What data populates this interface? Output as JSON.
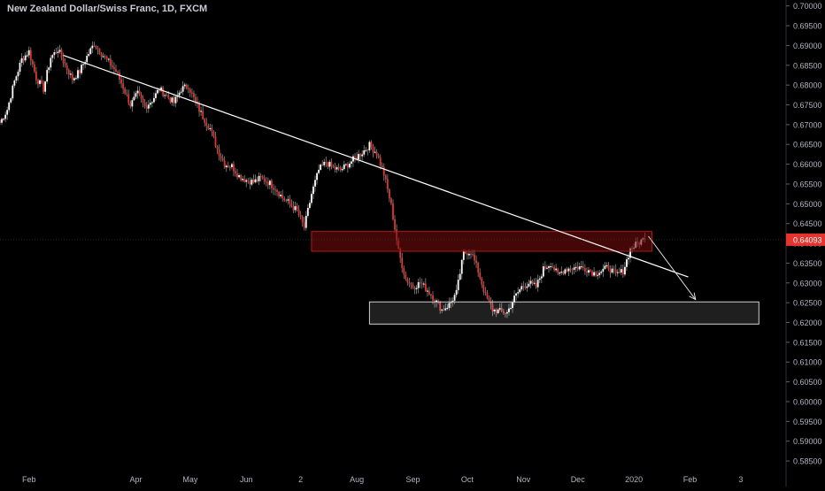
{
  "header": {
    "title": "New Zealand Dollar/Swiss Franc, 1D, FXCM"
  },
  "chart_data": {
    "type": "candlestick",
    "title": "New Zealand Dollar/Swiss Franc, 1D, FXCM",
    "ylim": [
      0.583,
      0.7015
    ],
    "y_ticks": [
      "0.70000",
      "0.69500",
      "0.69000",
      "0.68500",
      "0.68000",
      "0.67500",
      "0.67000",
      "0.66500",
      "0.66000",
      "0.65500",
      "0.65000",
      "0.64500",
      "0.64000",
      "0.63500",
      "0.63000",
      "0.62500",
      "0.62000",
      "0.61500",
      "0.61000",
      "0.60500",
      "0.60000",
      "0.59500",
      "0.59000",
      "0.58500"
    ],
    "x_ticks": [
      {
        "label": "Feb",
        "day": 0
      },
      {
        "label": "Apr",
        "day": 59
      },
      {
        "label": "May",
        "day": 89
      },
      {
        "label": "Jun",
        "day": 120
      },
      {
        "label": "2",
        "day": 150
      },
      {
        "label": "Aug",
        "day": 181
      },
      {
        "label": "Sep",
        "day": 212
      },
      {
        "label": "Oct",
        "day": 242
      },
      {
        "label": "Nov",
        "day": 273
      },
      {
        "label": "Dec",
        "day": 303
      },
      {
        "label": "2020",
        "day": 334
      },
      {
        "label": "Feb",
        "day": 365
      },
      {
        "label": "3",
        "day": 393
      }
    ],
    "x_range_days": [
      -16,
      418
    ],
    "last_price": {
      "value": 0.64093,
      "label": "0.64093",
      "color": "#e3342f"
    },
    "colors": {
      "up": "#ffffff",
      "down": "#e3342f",
      "background": "#000000",
      "axis_text": "#b2b5be",
      "trendline": "#ffffff",
      "zone_red": "#7a0c0c",
      "zone_gray": "#1e1e1e"
    },
    "anchors_close": [
      [
        -16,
        0.6705
      ],
      [
        -12,
        0.6738
      ],
      [
        -8,
        0.681
      ],
      [
        -4,
        0.6865
      ],
      [
        0,
        0.6885
      ],
      [
        4,
        0.6818
      ],
      [
        8,
        0.679
      ],
      [
        12,
        0.687
      ],
      [
        16,
        0.689
      ],
      [
        20,
        0.685
      ],
      [
        24,
        0.6815
      ],
      [
        28,
        0.6835
      ],
      [
        32,
        0.6872
      ],
      [
        36,
        0.6905
      ],
      [
        40,
        0.688
      ],
      [
        44,
        0.6858
      ],
      [
        48,
        0.6835
      ],
      [
        52,
        0.6795
      ],
      [
        56,
        0.675
      ],
      [
        60,
        0.6778
      ],
      [
        64,
        0.6745
      ],
      [
        68,
        0.6762
      ],
      [
        72,
        0.679
      ],
      [
        76,
        0.6773
      ],
      [
        80,
        0.6755
      ],
      [
        84,
        0.679
      ],
      [
        88,
        0.6798
      ],
      [
        92,
        0.6755
      ],
      [
        96,
        0.672
      ],
      [
        100,
        0.669
      ],
      [
        104,
        0.6638
      ],
      [
        108,
        0.66
      ],
      [
        112,
        0.6595
      ],
      [
        116,
        0.657
      ],
      [
        120,
        0.656
      ],
      [
        124,
        0.6555
      ],
      [
        128,
        0.6565
      ],
      [
        132,
        0.6555
      ],
      [
        136,
        0.654
      ],
      [
        140,
        0.6515
      ],
      [
        144,
        0.65
      ],
      [
        148,
        0.6482
      ],
      [
        152,
        0.644
      ],
      [
        156,
        0.6525
      ],
      [
        160,
        0.6585
      ],
      [
        164,
        0.6605
      ],
      [
        168,
        0.659
      ],
      [
        172,
        0.6585
      ],
      [
        176,
        0.66
      ],
      [
        180,
        0.6615
      ],
      [
        184,
        0.663
      ],
      [
        188,
        0.6648
      ],
      [
        192,
        0.6628
      ],
      [
        196,
        0.6575
      ],
      [
        200,
        0.6495
      ],
      [
        204,
        0.638
      ],
      [
        208,
        0.631
      ],
      [
        212,
        0.629
      ],
      [
        216,
        0.63
      ],
      [
        220,
        0.6282
      ],
      [
        224,
        0.6258
      ],
      [
        228,
        0.6232
      ],
      [
        232,
        0.6245
      ],
      [
        236,
        0.6275
      ],
      [
        240,
        0.6375
      ],
      [
        244,
        0.638
      ],
      [
        248,
        0.633
      ],
      [
        252,
        0.6268
      ],
      [
        256,
        0.6232
      ],
      [
        260,
        0.6228
      ],
      [
        264,
        0.6225
      ],
      [
        268,
        0.6262
      ],
      [
        272,
        0.629
      ],
      [
        276,
        0.63
      ],
      [
        280,
        0.629
      ],
      [
        284,
        0.6335
      ],
      [
        288,
        0.635
      ],
      [
        292,
        0.632
      ],
      [
        296,
        0.6335
      ],
      [
        300,
        0.6338
      ],
      [
        304,
        0.634
      ],
      [
        308,
        0.6335
      ],
      [
        312,
        0.6325
      ],
      [
        316,
        0.633
      ],
      [
        320,
        0.634
      ],
      [
        324,
        0.632
      ],
      [
        328,
        0.633
      ],
      [
        332,
        0.6385
      ],
      [
        336,
        0.64
      ],
      [
        340,
        0.6412
      ]
    ],
    "annotations": {
      "trendline": {
        "from": [
          19,
          0.6875
        ],
        "to": [
          364,
          0.6315
        ]
      },
      "arrow": {
        "from": [
          342,
          0.6418
        ],
        "to": [
          368,
          0.6258
        ]
      },
      "resistance_zone": {
        "x": [
          156,
          344
        ],
        "y": [
          0.638,
          0.643
        ]
      },
      "support_zone": {
        "x": [
          188,
          403
        ],
        "y": [
          0.6196,
          0.6252
        ]
      }
    }
  }
}
